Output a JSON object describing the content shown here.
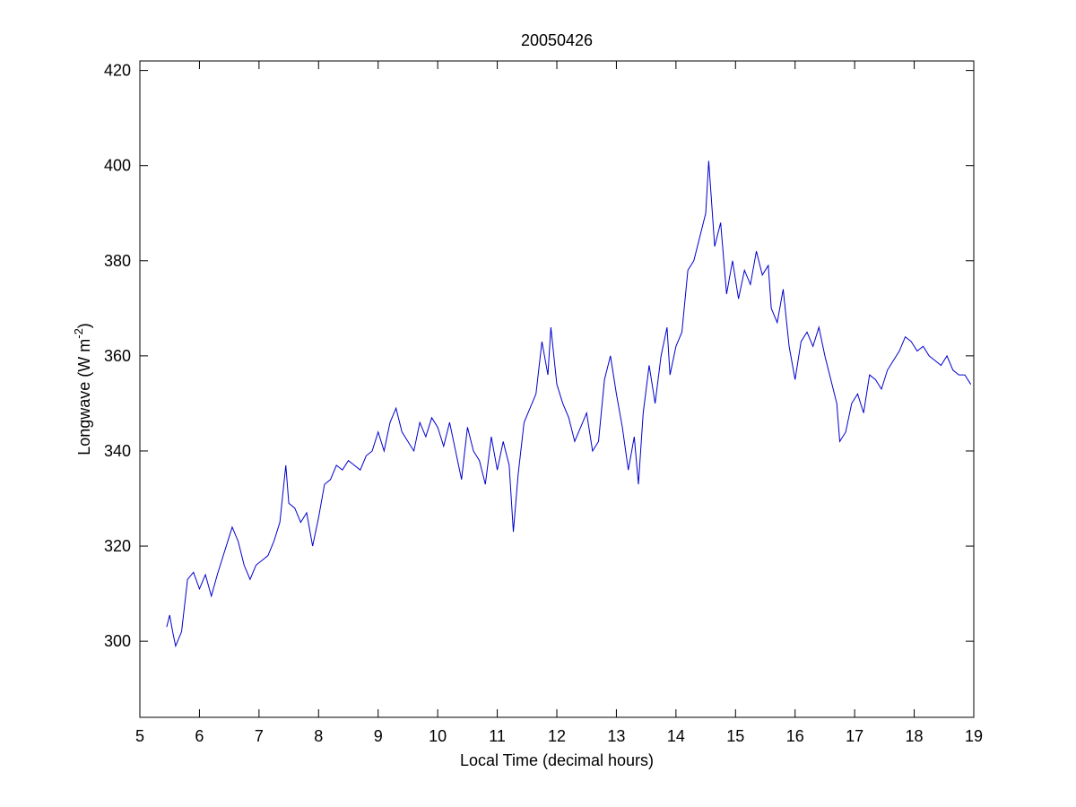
{
  "chart_data": {
    "type": "line",
    "title": "20050426",
    "x_label": "Local Time (decimal hours)",
    "y_label": "Longwave (W m",
    "y_label_superscript": "-2",
    "y_label_end": ")",
    "xlim": [
      5,
      19
    ],
    "xticks": [
      5,
      6,
      7,
      8,
      9,
      10,
      11,
      12,
      13,
      14,
      15,
      16,
      17,
      18,
      19
    ],
    "ylim": [
      284,
      422
    ],
    "yticks": [
      300,
      320,
      340,
      360,
      380,
      400,
      420
    ],
    "grid": false,
    "x": [
      5.45,
      5.5,
      5.55,
      5.6,
      5.7,
      5.8,
      5.9,
      6.0,
      6.1,
      6.2,
      6.3,
      6.4,
      6.5,
      6.55,
      6.65,
      6.75,
      6.85,
      6.95,
      7.05,
      7.15,
      7.25,
      7.35,
      7.45,
      7.5,
      7.6,
      7.7,
      7.8,
      7.9,
      8.0,
      8.1,
      8.2,
      8.3,
      8.4,
      8.5,
      8.6,
      8.7,
      8.8,
      8.9,
      9.0,
      9.1,
      9.2,
      9.3,
      9.4,
      9.5,
      9.6,
      9.7,
      9.8,
      9.9,
      10.0,
      10.1,
      10.2,
      10.3,
      10.4,
      10.5,
      10.6,
      10.7,
      10.8,
      10.9,
      11.0,
      11.1,
      11.2,
      11.27,
      11.35,
      11.45,
      11.55,
      11.65,
      11.75,
      11.85,
      11.9,
      12.0,
      12.1,
      12.2,
      12.3,
      12.4,
      12.5,
      12.6,
      12.7,
      12.8,
      12.9,
      13.0,
      13.1,
      13.2,
      13.3,
      13.37,
      13.45,
      13.55,
      13.65,
      13.75,
      13.85,
      13.9,
      14.0,
      14.1,
      14.2,
      14.3,
      14.4,
      14.5,
      14.55,
      14.65,
      14.75,
      14.85,
      14.95,
      15.05,
      15.15,
      15.25,
      15.35,
      15.45,
      15.55,
      15.6,
      15.7,
      15.8,
      15.9,
      16.0,
      16.1,
      16.2,
      16.3,
      16.4,
      16.5,
      16.6,
      16.7,
      16.75,
      16.85,
      16.95,
      17.05,
      17.15,
      17.25,
      17.35,
      17.45,
      17.55,
      17.65,
      17.75,
      17.85,
      17.95,
      18.05,
      18.15,
      18.25,
      18.35,
      18.45,
      18.55,
      18.65,
      18.75,
      18.85,
      18.95
    ],
    "series": [
      {
        "name": "Longwave",
        "color": "#0000cc",
        "values": [
          303,
          305.5,
          302,
          299,
          302,
          313,
          314.5,
          311,
          314,
          309.5,
          314,
          318,
          322,
          324,
          321,
          316,
          313,
          316,
          317,
          318,
          321,
          325,
          337,
          329,
          328,
          325,
          327,
          320,
          326,
          333,
          334,
          337,
          336,
          338,
          337,
          336,
          339,
          340,
          344,
          340,
          346,
          349,
          344,
          342,
          340,
          346,
          343,
          347,
          345,
          341,
          346,
          340,
          334,
          345,
          340,
          338,
          333,
          343,
          336,
          342,
          337,
          323,
          335,
          346,
          349,
          352,
          363,
          356,
          366,
          354,
          350,
          347,
          342,
          345,
          348,
          340,
          342,
          355,
          360,
          352,
          345,
          336,
          343,
          333,
          348,
          358,
          350,
          360,
          366,
          356,
          362,
          365,
          378,
          380,
          385,
          390,
          401,
          383,
          388,
          373,
          380,
          372,
          378,
          375,
          382,
          377,
          379,
          370,
          367,
          374,
          362,
          355,
          363,
          365,
          362,
          366,
          360,
          355,
          350,
          342,
          344,
          350,
          352,
          348,
          356,
          355,
          353,
          357,
          359,
          361,
          364,
          363,
          361,
          362,
          360,
          359,
          358,
          360,
          357,
          356,
          356,
          354
        ]
      }
    ]
  }
}
